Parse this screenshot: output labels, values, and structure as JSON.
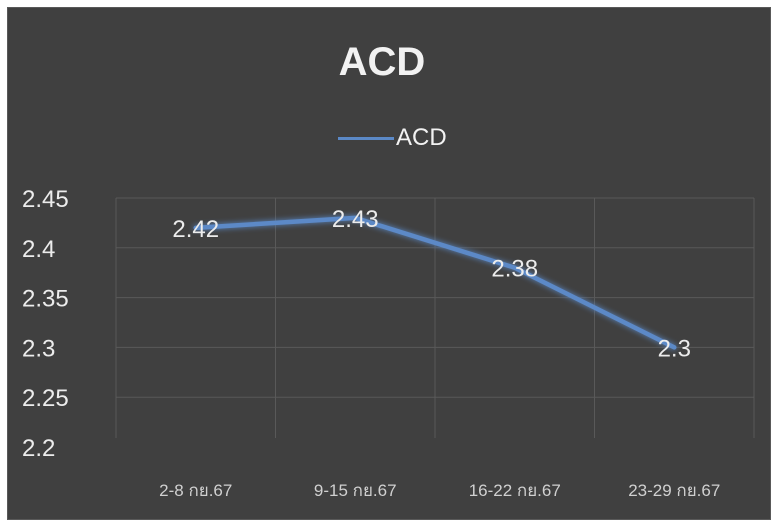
{
  "chart_data": {
    "type": "line",
    "title": "ACD",
    "xlabel": "",
    "ylabel": "",
    "categories": [
      "2-8 กย.67",
      "9-15 กย.67",
      "16-22 กย.67",
      "23-29 กย.67"
    ],
    "series": [
      {
        "name": "ACD",
        "values": [
          2.42,
          2.43,
          2.38,
          2.3
        ],
        "labels": [
          "2.42",
          "2.43",
          "2.38",
          "2.3"
        ],
        "color": "#5b89c7"
      }
    ],
    "ylim": [
      2.2,
      2.45
    ],
    "yticks": [
      "2.45",
      "2.4",
      "2.35",
      "2.3",
      "2.25",
      "2.2"
    ],
    "ytick_values": [
      2.45,
      2.4,
      2.35,
      2.3,
      2.25,
      2.2
    ],
    "grid": true,
    "legend": "top-center",
    "background": "#404040",
    "gridline_color": "#595959"
  }
}
